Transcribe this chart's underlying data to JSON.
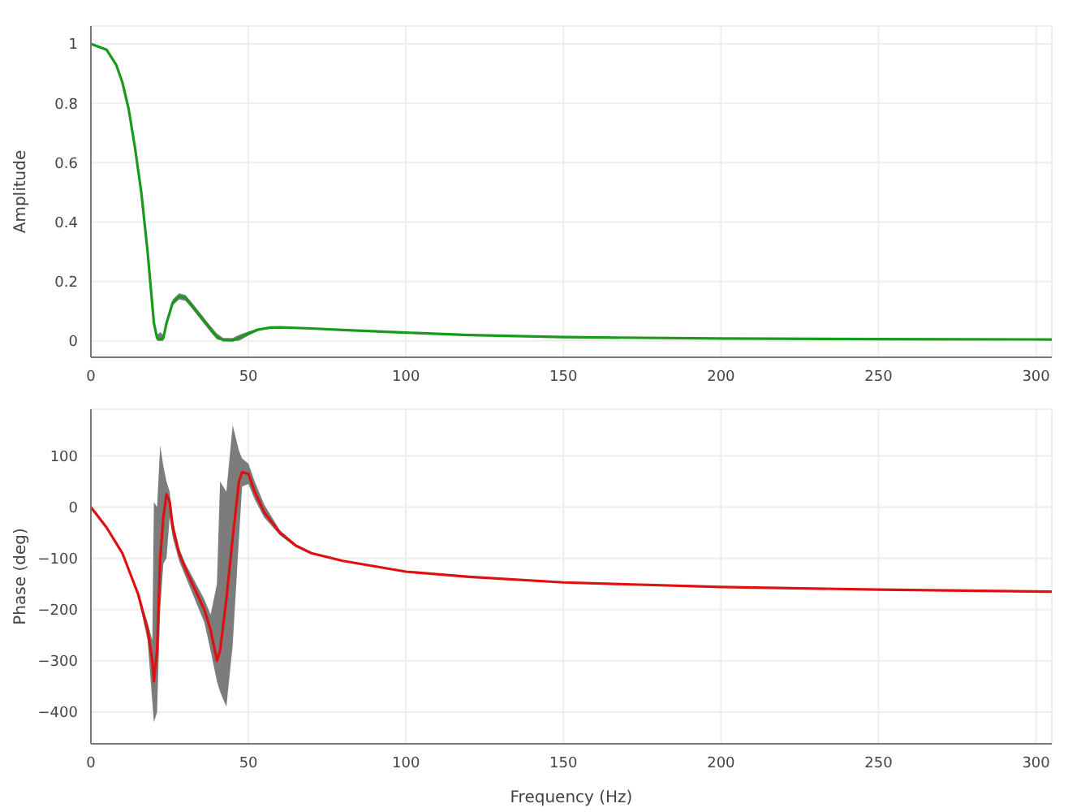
{
  "chart_data": [
    {
      "type": "line",
      "ylabel": "Amplitude",
      "x": [
        0,
        5,
        8,
        10,
        12,
        14,
        16,
        17,
        18,
        19,
        20,
        21,
        22,
        23,
        24,
        26,
        28,
        30,
        32,
        35,
        38,
        40,
        42,
        45,
        47,
        50,
        53,
        57,
        60,
        70,
        80,
        100,
        120,
        150,
        200,
        250,
        305
      ],
      "series": [
        {
          "color": "#1a9a1a",
          "values": [
            1,
            0.98,
            0.93,
            0.87,
            0.78,
            0.65,
            0.5,
            0.4,
            0.3,
            0.18,
            0.06,
            0.01,
            0.005,
            0.01,
            0.06,
            0.13,
            0.15,
            0.145,
            0.12,
            0.08,
            0.04,
            0.015,
            0.003,
            0.002,
            0.01,
            0.025,
            0.038,
            0.045,
            0.046,
            0.042,
            0.037,
            0.028,
            0.02,
            0.013,
            0.008,
            0.006,
            0.005
          ],
          "lower": [
            1,
            0.98,
            0.93,
            0.87,
            0.77,
            0.64,
            0.49,
            0.39,
            0.29,
            0.17,
            0.05,
            0,
            0,
            0,
            0.05,
            0.12,
            0.14,
            0.135,
            0.11,
            0.07,
            0.03,
            0.005,
            0,
            0,
            0,
            0.018,
            0.034,
            0.043,
            0.045,
            0.042,
            0.037,
            0.028,
            0.02,
            0.013,
            0.008,
            0.006,
            0.005
          ],
          "upper": [
            1,
            0.98,
            0.93,
            0.87,
            0.79,
            0.66,
            0.51,
            0.41,
            0.31,
            0.19,
            0.07,
            0.02,
            0.03,
            0.02,
            0.07,
            0.14,
            0.16,
            0.155,
            0.13,
            0.09,
            0.05,
            0.025,
            0.01,
            0.01,
            0.02,
            0.032,
            0.042,
            0.047,
            0.047,
            0.042,
            0.037,
            0.028,
            0.02,
            0.013,
            0.008,
            0.006,
            0.005
          ]
        }
      ],
      "xlim": [
        0,
        305
      ],
      "xticks": [
        0,
        50,
        100,
        150,
        200,
        250,
        300
      ],
      "ylim": [
        -0.055,
        1.06
      ],
      "yticks": [
        0,
        0.2,
        0.4,
        0.6,
        0.8,
        1
      ],
      "grid": true,
      "legend": false,
      "marker": "none"
    },
    {
      "type": "line",
      "xlabel": "Frequency (Hz)",
      "ylabel": "Phase (deg)",
      "x": [
        0,
        5,
        10,
        15,
        18,
        19.5,
        20,
        21,
        22,
        23,
        24,
        25,
        26,
        28,
        30,
        33,
        36,
        38,
        40,
        41,
        43,
        45,
        47,
        48,
        50,
        52,
        55,
        60,
        65,
        70,
        80,
        100,
        120,
        150,
        200,
        250,
        305
      ],
      "series": [
        {
          "color": "#dd1111",
          "values": [
            0,
            -40,
            -90,
            -170,
            -240,
            -300,
            -340,
            -280,
            -100,
            -20,
            25,
            10,
            -40,
            -90,
            -120,
            -160,
            -200,
            -240,
            -300,
            -280,
            -180,
            -60,
            50,
            68,
            65,
            30,
            -10,
            -50,
            -75,
            -90,
            -105,
            -126,
            -136,
            -147,
            -156,
            -161,
            -165
          ],
          "lower": [
            0,
            -40,
            -90,
            -175,
            -260,
            -380,
            -420,
            -400,
            -200,
            -110,
            -100,
            -20,
            -60,
            -105,
            -135,
            -180,
            -225,
            -280,
            -340,
            -360,
            -390,
            -270,
            -60,
            40,
            45,
            15,
            -20,
            -55,
            -78,
            -92,
            -106,
            -126,
            -136,
            -147,
            -156,
            -161,
            -165
          ],
          "upper": [
            0,
            -40,
            -90,
            -165,
            -225,
            -260,
            10,
            0,
            120,
            80,
            50,
            30,
            -25,
            -80,
            -110,
            -145,
            -180,
            -210,
            -150,
            50,
            30,
            160,
            110,
            95,
            85,
            50,
            5,
            -45,
            -72,
            -88,
            -104,
            -126,
            -136,
            -147,
            -156,
            -161,
            -165
          ]
        }
      ],
      "xlim": [
        0,
        305
      ],
      "xticks": [
        0,
        50,
        100,
        150,
        200,
        250,
        300
      ],
      "ylim": [
        -462,
        191
      ],
      "yticks": [
        {
          "value": -400,
          "label": "−400"
        },
        {
          "value": -300,
          "label": "−300"
        },
        {
          "value": -200,
          "label": "−200"
        },
        {
          "value": -100,
          "label": "−100"
        },
        0,
        100
      ],
      "grid": true,
      "legend": false,
      "marker": "none"
    }
  ]
}
